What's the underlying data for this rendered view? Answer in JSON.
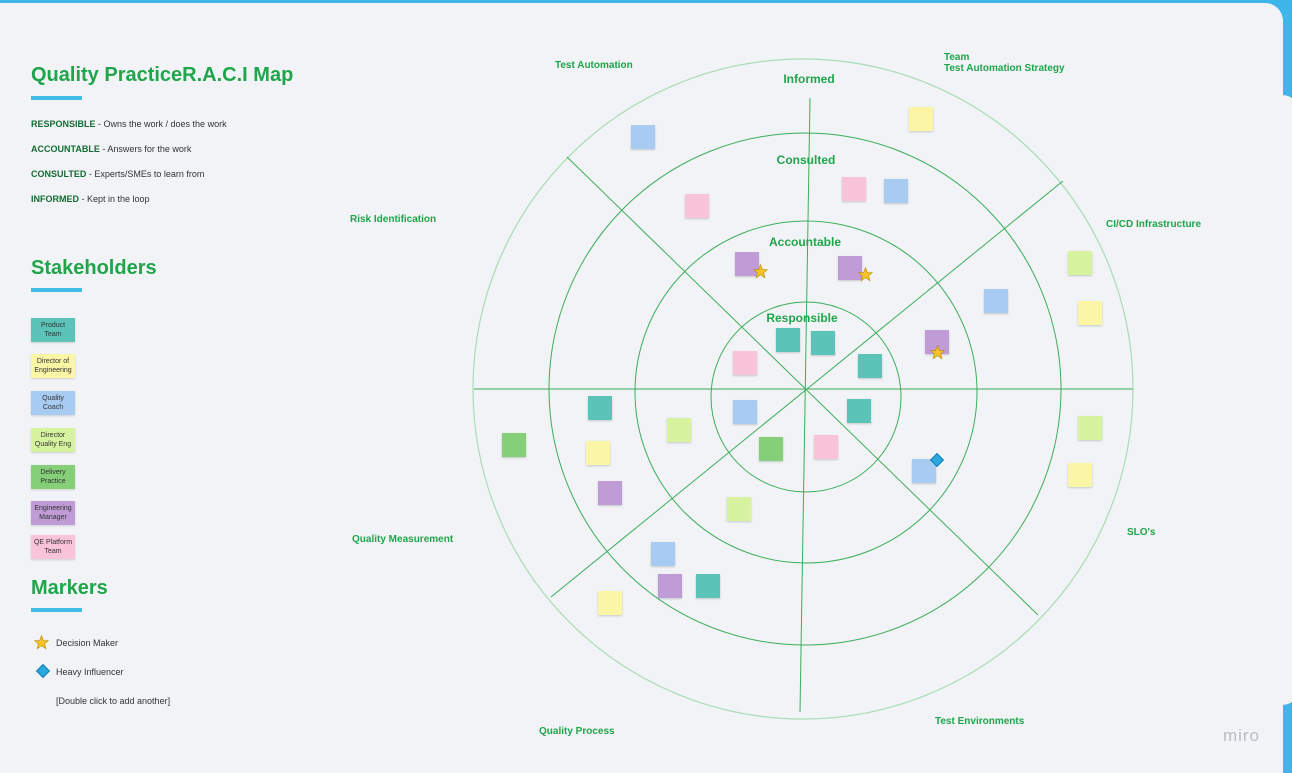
{
  "title": "Quality PracticeR.A.C.I Map",
  "roles": [
    {
      "term": "RESPONSIBLE",
      "desc": " - Owns the work / does the work"
    },
    {
      "term": "ACCOUNTABLE",
      "desc": " - Answers for the work"
    },
    {
      "term": "CONSULTED",
      "desc": " - Experts/SMEs to learn from"
    },
    {
      "term": "INFORMED",
      "desc": " - Kept in the loop"
    }
  ],
  "stakeholders_title": "Stakeholders",
  "stakeholders": [
    {
      "label": "Product\nTeam",
      "color": "#5cc3b8"
    },
    {
      "label": "Director of\nEngineering",
      "color": "#fbf6a6"
    },
    {
      "label": "Quality\nCoach",
      "color": "#a8cbf2"
    },
    {
      "label": "Director\nQuality Eng",
      "color": "#d8f3a0"
    },
    {
      "label": "Delivery\nPractice",
      "color": "#86cf79"
    },
    {
      "label": "Engineering\nManager",
      "color": "#bf9cd6"
    },
    {
      "label": "QE Platform\nTeam",
      "color": "#f9c3d9"
    }
  ],
  "markers_title": "Markers",
  "markers": {
    "decision_maker": "Decision Maker",
    "heavy_influencer": "Heavy Influencer",
    "add_another": "[Double click to add another]"
  },
  "rings": {
    "informed": "Informed",
    "consulted": "Consulted",
    "accountable": "Accountable",
    "responsible": "Responsible"
  },
  "segments": {
    "test_automation": "Test Automation",
    "team_strategy": "Team\nTest Automation Strategy",
    "cicd": "CI/CD Infrastructure",
    "slos": "SLO's",
    "test_env": "Test Environments",
    "quality_process": "Quality Process",
    "quality_measurement": "Quality Measurement",
    "risk_identification": "Risk Identification"
  },
  "brand": "miro"
}
